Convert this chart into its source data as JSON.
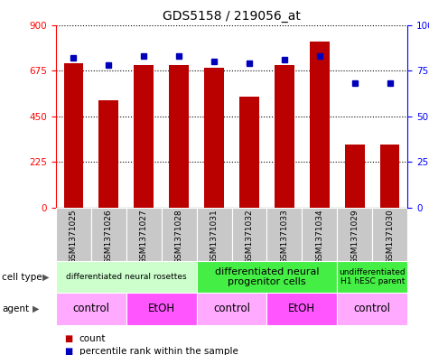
{
  "title": "GDS5158 / 219056_at",
  "samples": [
    "GSM1371025",
    "GSM1371026",
    "GSM1371027",
    "GSM1371028",
    "GSM1371031",
    "GSM1371032",
    "GSM1371033",
    "GSM1371034",
    "GSM1371029",
    "GSM1371030"
  ],
  "counts": [
    710,
    530,
    700,
    700,
    690,
    545,
    700,
    820,
    310,
    310
  ],
  "percentiles": [
    82,
    78,
    83,
    83,
    80,
    79,
    81,
    83,
    68,
    68
  ],
  "ylim_left": [
    0,
    900
  ],
  "ylim_right": [
    0,
    100
  ],
  "yticks_left": [
    0,
    225,
    450,
    675,
    900
  ],
  "yticks_right": [
    0,
    25,
    50,
    75,
    100
  ],
  "bar_color": "#BB0000",
  "dot_color": "#0000BB",
  "bar_width": 0.55,
  "cell_type_groups": [
    {
      "label": "differentiated neural rosettes",
      "start": 0,
      "end": 4,
      "color": "#CCFFCC",
      "fontsize": 6.5
    },
    {
      "label": "differentiated neural\nprogenitor cells",
      "start": 4,
      "end": 8,
      "color": "#44EE44",
      "fontsize": 8
    },
    {
      "label": "undifferentiated\nH1 hESC parent",
      "start": 8,
      "end": 10,
      "color": "#44EE44",
      "fontsize": 6.5
    }
  ],
  "agent_groups": [
    {
      "label": "control",
      "start": 0,
      "end": 2,
      "color": "#FFAAFF"
    },
    {
      "label": "EtOH",
      "start": 2,
      "end": 4,
      "color": "#FF55FF"
    },
    {
      "label": "control",
      "start": 4,
      "end": 6,
      "color": "#FFAAFF"
    },
    {
      "label": "EtOH",
      "start": 6,
      "end": 8,
      "color": "#FF55FF"
    },
    {
      "label": "control",
      "start": 8,
      "end": 10,
      "color": "#FFAAFF"
    }
  ],
  "sample_bg_color": "#C8C8C8",
  "legend_items": [
    {
      "label": "count",
      "color": "#BB0000"
    },
    {
      "label": "percentile rank within the sample",
      "color": "#0000BB"
    }
  ]
}
